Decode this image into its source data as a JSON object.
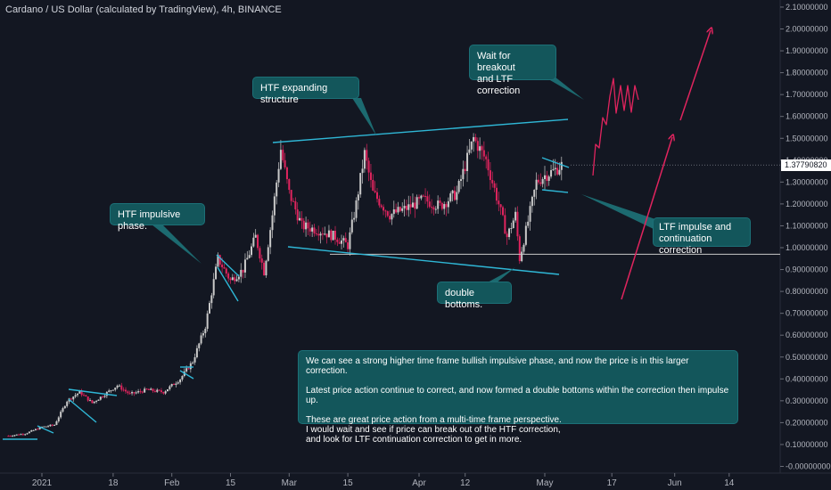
{
  "header": {
    "title": "Cardano / US Dollar (calculated by TradingView), 4h, BINANCE"
  },
  "colors": {
    "background": "#131722",
    "candle_up": "#c9c9c9",
    "candle_down": "#e0245e",
    "trendline": "#2fb7d6",
    "projection": "#e0245e",
    "support_line": "#c8c8c8",
    "callout_fill": "#13565b",
    "callout_pointer": "#1c6a70"
  },
  "current_price": {
    "label": "1.37790820",
    "value": 1.3779082
  },
  "price_axis": {
    "labels": [
      "2.10000000",
      "2.00000000",
      "1.90000000",
      "1.80000000",
      "1.70000000",
      "1.60000000",
      "1.50000000",
      "1.40000000",
      "1.30000000",
      "1.20000000",
      "1.10000000",
      "1.00000000",
      "0.90000000",
      "0.80000000",
      "0.70000000",
      "0.60000000",
      "0.50000000",
      "0.40000000",
      "0.30000000",
      "0.20000000",
      "0.10000000",
      "-0.00000000"
    ]
  },
  "time_axis": {
    "labels": [
      "2021",
      "18",
      "Feb",
      "15",
      "Mar",
      "15",
      "Apr",
      "12",
      "May",
      "17",
      "Jun",
      "14"
    ]
  },
  "annotations": {
    "htf_expanding": "HTF expanding structure",
    "wait_breakout": "Wait for breakout\nand LTF correction",
    "htf_impulsive": "HTF impulsive phase.",
    "ltf_impulse": "LTF impulse and\ncontinuation correction",
    "double_bottoms": "double bottoms.",
    "main_text": "We can see a strong higher time frame bullish impulsive phase, and now the price is in this larger correction.\n\nLatest price action continue to correct, and now formed a double bottoms within the correction then impulse up.\n\nThese are great price action from a multi-time frame perspective.\nI would wait and see if price can break out of the HTF correction,\nand look for LTF continuation correction to get in more."
  },
  "chart_data": {
    "type": "candlestick",
    "title": "Cardano / US Dollar (calculated by TradingView), 4h, BINANCE",
    "ylim": [
      -0.05,
      2.15
    ],
    "grid": false,
    "y_ticks": [
      2.1,
      2.0,
      1.9,
      1.8,
      1.7,
      1.6,
      1.5,
      1.4,
      1.3,
      1.2,
      1.1,
      1.0,
      0.9,
      0.8,
      0.7,
      0.6,
      0.5,
      0.4,
      0.3,
      0.2,
      0.1,
      0.0
    ],
    "x_ticks": [
      {
        "label": "2021",
        "date": "2021-01-01"
      },
      {
        "label": "18",
        "date": "2021-01-18"
      },
      {
        "label": "Feb",
        "date": "2021-02-01"
      },
      {
        "label": "15",
        "date": "2021-02-15"
      },
      {
        "label": "Mar",
        "date": "2021-03-01"
      },
      {
        "label": "15",
        "date": "2021-03-15"
      },
      {
        "label": "Apr",
        "date": "2021-04-01"
      },
      {
        "label": "12",
        "date": "2021-04-12"
      },
      {
        "label": "May",
        "date": "2021-05-01"
      },
      {
        "label": "17",
        "date": "2021-05-17"
      },
      {
        "label": "Jun",
        "date": "2021-06-01"
      },
      {
        "label": "14",
        "date": "2021-06-14"
      }
    ],
    "price_path": [
      {
        "date": "2020-12-24",
        "price": 0.14
      },
      {
        "date": "2020-12-28",
        "price": 0.15
      },
      {
        "date": "2021-01-01",
        "price": 0.18
      },
      {
        "date": "2021-01-04",
        "price": 0.19
      },
      {
        "date": "2021-01-07",
        "price": 0.3
      },
      {
        "date": "2021-01-10",
        "price": 0.34
      },
      {
        "date": "2021-01-13",
        "price": 0.29
      },
      {
        "date": "2021-01-16",
        "price": 0.33
      },
      {
        "date": "2021-01-19",
        "price": 0.37
      },
      {
        "date": "2021-01-22",
        "price": 0.33
      },
      {
        "date": "2021-01-26",
        "price": 0.35
      },
      {
        "date": "2021-01-30",
        "price": 0.34
      },
      {
        "date": "2021-02-03",
        "price": 0.4
      },
      {
        "date": "2021-02-06",
        "price": 0.48
      },
      {
        "date": "2021-02-09",
        "price": 0.64
      },
      {
        "date": "2021-02-12",
        "price": 0.95
      },
      {
        "date": "2021-02-15",
        "price": 0.85
      },
      {
        "date": "2021-02-18",
        "price": 0.9
      },
      {
        "date": "2021-02-21",
        "price": 1.05
      },
      {
        "date": "2021-02-23",
        "price": 0.89
      },
      {
        "date": "2021-02-25",
        "price": 1.15
      },
      {
        "date": "2021-02-27",
        "price": 1.45
      },
      {
        "date": "2021-03-01",
        "price": 1.25
      },
      {
        "date": "2021-03-04",
        "price": 1.1
      },
      {
        "date": "2021-03-08",
        "price": 1.08
      },
      {
        "date": "2021-03-12",
        "price": 1.05
      },
      {
        "date": "2021-03-15",
        "price": 1.01
      },
      {
        "date": "2021-03-17",
        "price": 1.2
      },
      {
        "date": "2021-03-19",
        "price": 1.43
      },
      {
        "date": "2021-03-21",
        "price": 1.25
      },
      {
        "date": "2021-03-25",
        "price": 1.15
      },
      {
        "date": "2021-03-29",
        "price": 1.18
      },
      {
        "date": "2021-04-02",
        "price": 1.22
      },
      {
        "date": "2021-04-06",
        "price": 1.19
      },
      {
        "date": "2021-04-10",
        "price": 1.25
      },
      {
        "date": "2021-04-14",
        "price": 1.5
      },
      {
        "date": "2021-04-17",
        "price": 1.4
      },
      {
        "date": "2021-04-20",
        "price": 1.2
      },
      {
        "date": "2021-04-22",
        "price": 1.05
      },
      {
        "date": "2021-04-24",
        "price": 1.15
      },
      {
        "date": "2021-04-25",
        "price": 0.95
      },
      {
        "date": "2021-04-27",
        "price": 1.12
      },
      {
        "date": "2021-04-29",
        "price": 1.3
      },
      {
        "date": "2021-05-01",
        "price": 1.33
      },
      {
        "date": "2021-05-03",
        "price": 1.35
      },
      {
        "date": "2021-05-05",
        "price": 1.377
      }
    ]
  }
}
